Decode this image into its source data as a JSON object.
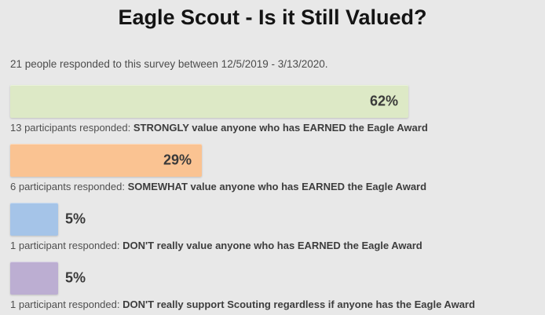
{
  "header": {
    "title": "Eagle Scout - Is it Still Valued?"
  },
  "survey": {
    "summary": "21 people responded to this survey between 12/5/2019 - 3/13/2020."
  },
  "chart_data": {
    "type": "bar",
    "orientation": "horizontal",
    "title": "Eagle Scout - Is it Still Valued?",
    "total_respondents": 21,
    "date_range": "12/5/2019 - 3/13/2020",
    "categories": [
      "STRONGLY value anyone who has EARNED the Eagle Award",
      "SOMEWHAT value anyone who has EARNED the Eagle Award",
      "DON'T really value anyone who has EARNED the Eagle Award",
      "DON'T really support Scouting regardless if anyone has the Eagle Award"
    ],
    "values": [
      62,
      29,
      5,
      5
    ],
    "counts": [
      13,
      6,
      1,
      1
    ],
    "xlim": [
      0,
      100
    ],
    "grid": false,
    "legend": "none",
    "bars": [
      {
        "percent": 62,
        "percent_label": "62%",
        "count": 13,
        "caption_prefix": "13 participants responded: ",
        "caption_bold": "STRONGLY value anyone who has EARNED the Eagle Award",
        "color": "#dde9c6"
      },
      {
        "percent": 29,
        "percent_label": "29%",
        "count": 6,
        "caption_prefix": "6 participants responded: ",
        "caption_bold": "SOMEWHAT value anyone who has EARNED the Eagle Award",
        "color": "#fac392"
      },
      {
        "percent": 5,
        "percent_label": "5%",
        "count": 1,
        "caption_prefix": "1 participant responded: ",
        "caption_bold": "DON'T really value anyone who has EARNED the Eagle Award",
        "color": "#a5c4e8"
      },
      {
        "percent": 5,
        "percent_label": "5%",
        "count": 1,
        "caption_prefix": "1 participant responded: ",
        "caption_bold": "DON'T really support Scouting regardless if anyone has the Eagle Award",
        "color": "#bcaed2"
      }
    ]
  }
}
